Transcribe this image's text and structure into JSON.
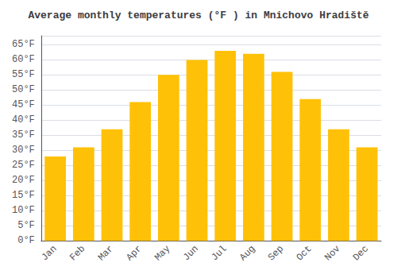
{
  "chart_data": {
    "type": "bar",
    "title": "Average monthly temperatures (°F ) in Mnichovo Hradiště",
    "categories": [
      "Jan",
      "Feb",
      "Mar",
      "Apr",
      "May",
      "Jun",
      "Jul",
      "Aug",
      "Sep",
      "Oct",
      "Nov",
      "Dec"
    ],
    "values": [
      28,
      31,
      37,
      46,
      55,
      60,
      63,
      62,
      56,
      47,
      37,
      31
    ],
    "color": "#FFC107",
    "ylim": [
      0,
      68
    ],
    "yticks": [
      {
        "value": 0,
        "label": "0°F"
      },
      {
        "value": 5,
        "label": "5°F"
      },
      {
        "value": 10,
        "label": "10°F"
      },
      {
        "value": 15,
        "label": "15°F"
      },
      {
        "value": 20,
        "label": "20°F"
      },
      {
        "value": 25,
        "label": "25°F"
      },
      {
        "value": 30,
        "label": "30°F"
      },
      {
        "value": 35,
        "label": "35°F"
      },
      {
        "value": 40,
        "label": "40°F"
      },
      {
        "value": 45,
        "label": "45°F"
      },
      {
        "value": 50,
        "label": "50°F"
      },
      {
        "value": 55,
        "label": "55°F"
      },
      {
        "value": 60,
        "label": "60°F"
      },
      {
        "value": 65,
        "label": "65°F"
      }
    ],
    "grid": true
  }
}
